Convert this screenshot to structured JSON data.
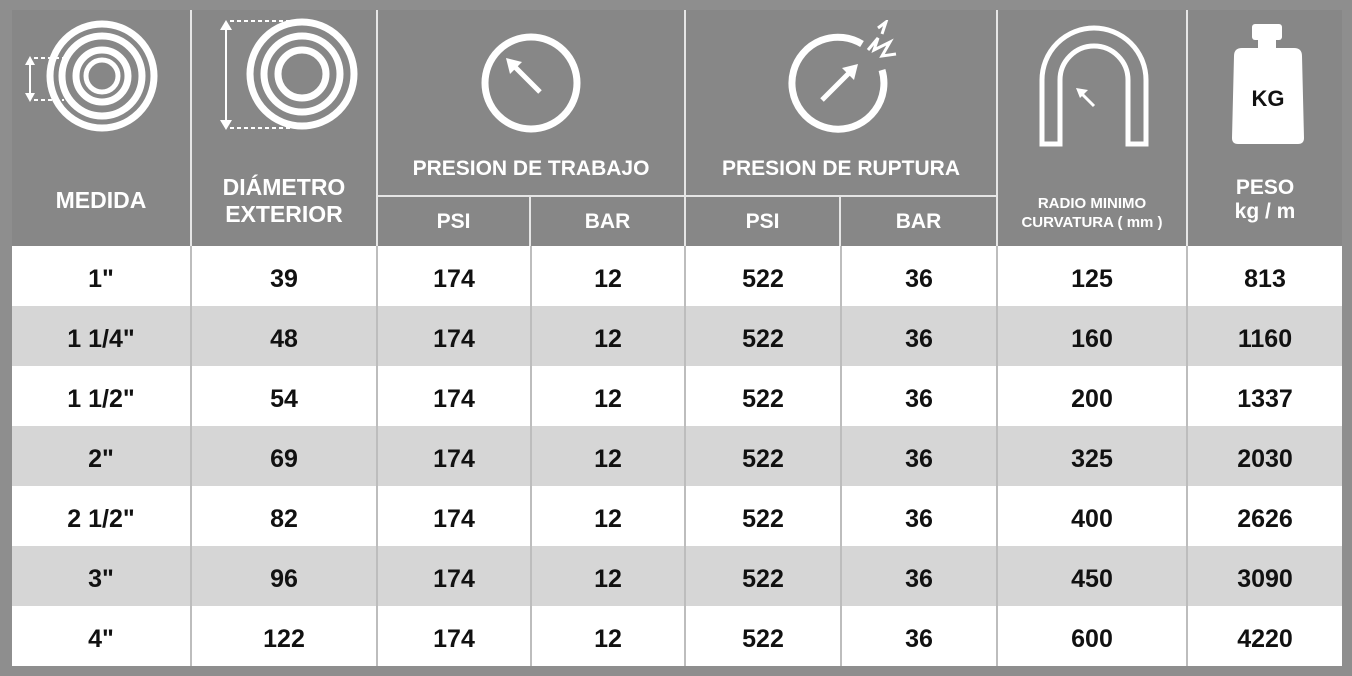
{
  "header": {
    "medida": "MEDIDA",
    "diametro_line1": "DIÁMETRO",
    "diametro_line2": "EXTERIOR",
    "presion_trabajo": "PRESION DE TRABAJO",
    "presion_ruptura": "PRESION DE RUPTURA",
    "psi": "PSI",
    "bar": "BAR",
    "radio_line1": "RADIO MINIMO",
    "radio_line2": "CURVATURA ( mm )",
    "kg_icon_label": "KG",
    "peso_line1": "PESO",
    "peso_line2": "kg / m"
  },
  "icons": {
    "medida": "hose-inner-diameter-icon",
    "diametro": "hose-outer-diameter-icon",
    "trabajo": "pressure-gauge-icon",
    "ruptura": "burst-pressure-icon",
    "radio": "bend-radius-icon",
    "peso": "weight-icon"
  },
  "colors": {
    "header_bg": "#878787",
    "row_white": "#ffffff",
    "row_gray": "#d6d6d6"
  },
  "rows": [
    [
      "1\"",
      "39",
      "174",
      "12",
      "522",
      "36",
      "125",
      "813"
    ],
    [
      "1 1/4\"",
      "48",
      "174",
      "12",
      "522",
      "36",
      "160",
      "1160"
    ],
    [
      "1 1/2\"",
      "54",
      "174",
      "12",
      "522",
      "36",
      "200",
      "1337"
    ],
    [
      "2\"",
      "69",
      "174",
      "12",
      "522",
      "36",
      "325",
      "2030"
    ],
    [
      "2 1/2\"",
      "82",
      "174",
      "12",
      "522",
      "36",
      "400",
      "2626"
    ],
    [
      "3\"",
      "96",
      "174",
      "12",
      "522",
      "36",
      "450",
      "3090"
    ],
    [
      "4\"",
      "122",
      "174",
      "12",
      "522",
      "36",
      "600",
      "4220"
    ]
  ]
}
